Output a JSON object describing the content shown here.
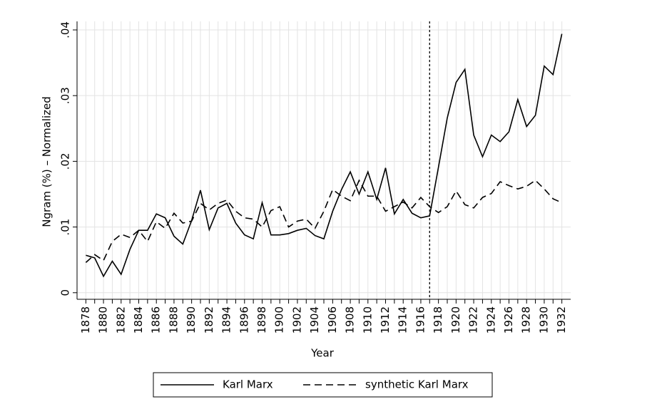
{
  "chart_data": {
    "type": "line",
    "x_label": "Year",
    "y_label": "Ngram (%) – Normalized",
    "x": [
      1878,
      1879,
      1880,
      1881,
      1882,
      1883,
      1884,
      1885,
      1886,
      1887,
      1888,
      1889,
      1890,
      1891,
      1892,
      1893,
      1894,
      1895,
      1896,
      1897,
      1898,
      1899,
      1900,
      1901,
      1902,
      1903,
      1904,
      1905,
      1906,
      1907,
      1908,
      1909,
      1910,
      1911,
      1912,
      1913,
      1914,
      1915,
      1916,
      1917,
      1918,
      1919,
      1920,
      1921,
      1922,
      1923,
      1924,
      1925,
      1926,
      1927,
      1928,
      1929,
      1930,
      1931,
      1932
    ],
    "series": [
      {
        "name": "Karl Marx",
        "color": "#000000",
        "dash": "solid",
        "values": [
          0.0057,
          0.0053,
          0.0025,
          0.0048,
          0.0028,
          0.0066,
          0.0095,
          0.0095,
          0.012,
          0.0114,
          0.0086,
          0.0074,
          0.011,
          0.0156,
          0.0096,
          0.0129,
          0.0136,
          0.0106,
          0.0088,
          0.0082,
          0.0137,
          0.0088,
          0.0088,
          0.009,
          0.0095,
          0.0098,
          0.0087,
          0.0082,
          0.0124,
          0.0157,
          0.0184,
          0.015,
          0.0184,
          0.0142,
          0.019,
          0.012,
          0.0142,
          0.0121,
          0.0114,
          0.0117,
          0.0191,
          0.0266,
          0.032,
          0.034,
          0.024,
          0.0207,
          0.024,
          0.023,
          0.0245,
          0.0294,
          0.0253,
          0.027,
          0.0345,
          0.0332,
          0.0394
        ]
      },
      {
        "name": "synthetic Karl Marx",
        "color": "#000000",
        "dash": "dashed",
        "values": [
          0.0046,
          0.0058,
          0.0049,
          0.0078,
          0.0089,
          0.0084,
          0.0095,
          0.0078,
          0.0108,
          0.0098,
          0.0121,
          0.0106,
          0.0109,
          0.0136,
          0.0126,
          0.0136,
          0.0141,
          0.0124,
          0.0114,
          0.0112,
          0.01,
          0.0125,
          0.0131,
          0.01,
          0.0109,
          0.0112,
          0.0098,
          0.0124,
          0.0157,
          0.0147,
          0.014,
          0.0171,
          0.0147,
          0.0147,
          0.0124,
          0.0131,
          0.0138,
          0.0129,
          0.0145,
          0.0131,
          0.0122,
          0.0131,
          0.0155,
          0.0134,
          0.0129,
          0.0145,
          0.0151,
          0.0169,
          0.0163,
          0.0158,
          0.0162,
          0.0171,
          0.0158,
          0.0143,
          0.0137
        ]
      }
    ],
    "xlim": [
      1877,
      1933
    ],
    "xticks": [
      1878,
      1880,
      1882,
      1884,
      1886,
      1888,
      1890,
      1892,
      1894,
      1896,
      1898,
      1900,
      1902,
      1904,
      1906,
      1908,
      1910,
      1912,
      1914,
      1916,
      1918,
      1920,
      1922,
      1924,
      1926,
      1928,
      1930,
      1932
    ],
    "xminorticks": [
      1879,
      1881,
      1883,
      1885,
      1887,
      1889,
      1891,
      1893,
      1895,
      1897,
      1899,
      1901,
      1903,
      1905,
      1907,
      1909,
      1911,
      1913,
      1915,
      1917,
      1919,
      1921,
      1923,
      1925,
      1927,
      1929,
      1931
    ],
    "ylim": [
      -0.001,
      0.0413
    ],
    "yticks": [
      0,
      {
        "value": 0.01,
        "label": ".01"
      },
      {
        "value": 0.02,
        "label": ".02"
      },
      {
        "value": 0.03,
        "label": ".03"
      },
      {
        "value": 0.04,
        "label": ".04"
      }
    ],
    "vline": 1917,
    "grid": true,
    "legend": "bottom"
  }
}
